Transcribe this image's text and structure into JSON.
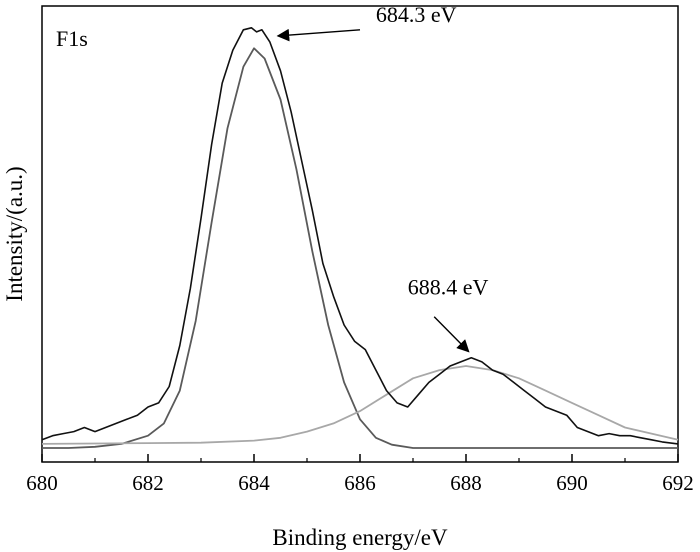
{
  "chart_data": {
    "type": "line",
    "title": "",
    "panel_label": "F1s",
    "xlabel": "Binding energy/eV",
    "ylabel": "Intensity/(a.u.)",
    "xlim": [
      680,
      692
    ],
    "ylim": [
      0,
      1
    ],
    "x_ticks": [
      680,
      682,
      684,
      686,
      688,
      690,
      692
    ],
    "y_ticks_shown": false,
    "grid": false,
    "series": [
      {
        "role": "measured",
        "color": "#111111",
        "x": [
          680.0,
          680.2,
          680.4,
          680.6,
          680.8,
          681.0,
          681.2,
          681.4,
          681.6,
          681.8,
          682.0,
          682.2,
          682.4,
          682.6,
          682.8,
          683.0,
          683.2,
          683.4,
          683.6,
          683.8,
          683.95,
          684.05,
          684.15,
          684.3,
          684.5,
          684.7,
          684.9,
          685.1,
          685.3,
          685.5,
          685.7,
          685.9,
          686.1,
          686.3,
          686.5,
          686.7,
          686.9,
          687.1,
          687.3,
          687.5,
          687.7,
          687.9,
          688.1,
          688.3,
          688.5,
          688.7,
          688.9,
          689.1,
          689.3,
          689.5,
          689.7,
          689.9,
          690.1,
          690.3,
          690.5,
          690.7,
          690.9,
          691.1,
          691.3,
          691.5,
          691.7,
          692.0
        ],
        "y": [
          0.02,
          0.03,
          0.035,
          0.04,
          0.05,
          0.04,
          0.05,
          0.06,
          0.07,
          0.08,
          0.1,
          0.11,
          0.15,
          0.25,
          0.39,
          0.56,
          0.74,
          0.89,
          0.97,
          1.02,
          1.025,
          1.015,
          1.02,
          0.99,
          0.92,
          0.82,
          0.7,
          0.58,
          0.45,
          0.37,
          0.3,
          0.26,
          0.24,
          0.19,
          0.14,
          0.11,
          0.1,
          0.13,
          0.16,
          0.18,
          0.2,
          0.21,
          0.22,
          0.21,
          0.19,
          0.18,
          0.16,
          0.14,
          0.12,
          0.1,
          0.09,
          0.08,
          0.05,
          0.04,
          0.03,
          0.035,
          0.03,
          0.03,
          0.025,
          0.02,
          0.015,
          0.01
        ]
      },
      {
        "role": "fit-peak",
        "color": "#5a5a5a",
        "x": [
          680.0,
          680.5,
          681.0,
          681.5,
          682.0,
          682.3,
          682.6,
          682.9,
          683.2,
          683.5,
          683.8,
          684.0,
          684.2,
          684.5,
          684.8,
          685.1,
          685.4,
          685.7,
          686.0,
          686.3,
          686.6,
          687.0,
          687.5,
          688.0,
          689.0,
          690.0,
          691.0,
          692.0
        ],
        "y": [
          0.0,
          0.0,
          0.003,
          0.01,
          0.03,
          0.06,
          0.14,
          0.31,
          0.55,
          0.78,
          0.93,
          0.975,
          0.95,
          0.85,
          0.68,
          0.48,
          0.3,
          0.16,
          0.07,
          0.025,
          0.008,
          0.0,
          0.0,
          0.0,
          0.0,
          0.0,
          0.0,
          0.0
        ]
      },
      {
        "role": "fit-peak",
        "color": "#a8a8a8",
        "x": [
          680.0,
          681.0,
          682.0,
          683.0,
          684.0,
          684.5,
          685.0,
          685.5,
          686.0,
          686.5,
          687.0,
          687.5,
          688.0,
          688.5,
          689.0,
          689.5,
          690.0,
          690.5,
          691.0,
          691.5,
          692.0
        ],
        "y": [
          0.01,
          0.011,
          0.012,
          0.013,
          0.018,
          0.025,
          0.04,
          0.06,
          0.09,
          0.13,
          0.17,
          0.19,
          0.2,
          0.19,
          0.17,
          0.14,
          0.11,
          0.08,
          0.05,
          0.035,
          0.02
        ]
      }
    ],
    "annotations": [
      {
        "text": "684.3 eV",
        "arrow_from": [
          686.0,
          1.02
        ],
        "arrow_to": [
          684.45,
          1.005
        ],
        "text_at": [
          686.3,
          1.02
        ]
      },
      {
        "text": "688.4 eV",
        "arrow_from": [
          687.4,
          0.32
        ],
        "arrow_to": [
          688.05,
          0.235
        ],
        "text_at": [
          686.9,
          0.355
        ]
      }
    ]
  }
}
